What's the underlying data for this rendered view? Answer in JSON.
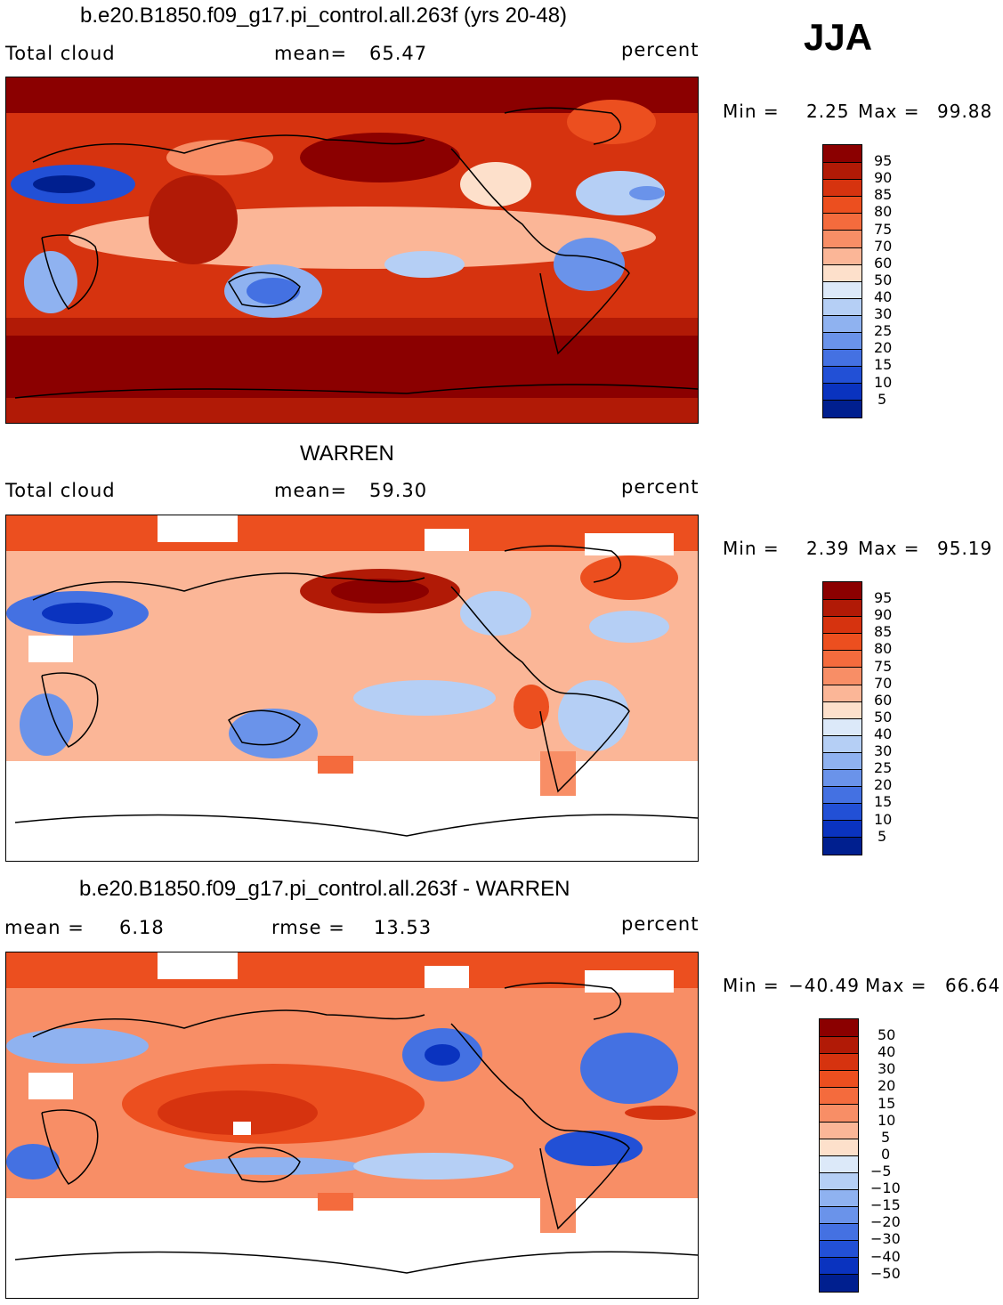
{
  "season": "JJA",
  "panels": [
    {
      "title": "b.e20.B1850.f09_g17.pi_control.all.263f (yrs 20-48)",
      "left_text": "Total cloud",
      "stat1_label": "mean=",
      "stat1_value": "65.47",
      "stat2_label": "",
      "stat2_value": "",
      "units": "percent",
      "min_label": "Min =",
      "min_value": "2.25",
      "max_label": "Max =",
      "max_value": "99.88",
      "levels": [
        "95",
        "90",
        "85",
        "80",
        "75",
        "70",
        "60",
        "50",
        "40",
        "30",
        "25",
        "20",
        "15",
        "10",
        "5"
      ]
    },
    {
      "title": "WARREN",
      "left_text": "Total cloud",
      "stat1_label": "mean=",
      "stat1_value": "59.30",
      "stat2_label": "",
      "stat2_value": "",
      "units": "percent",
      "min_label": "Min =",
      "min_value": "2.39",
      "max_label": "Max =",
      "max_value": "95.19",
      "levels": [
        "95",
        "90",
        "85",
        "80",
        "75",
        "70",
        "60",
        "50",
        "40",
        "30",
        "25",
        "20",
        "15",
        "10",
        "5"
      ]
    },
    {
      "title": "b.e20.B1850.f09_g17.pi_control.all.263f - WARREN",
      "left_text": "",
      "stat1_label": "mean =",
      "stat1_value": "6.18",
      "stat2_label": "rmse =",
      "stat2_value": "13.53",
      "units": "percent",
      "min_label": "Min =",
      "min_value": "−40.49",
      "max_label": "Max =",
      "max_value": "66.64",
      "levels": [
        "50",
        "40",
        "30",
        "20",
        "15",
        "10",
        "5",
        "0",
        "−5",
        "−10",
        "−15",
        "−20",
        "−30",
        "−40",
        "−50"
      ]
    }
  ],
  "colors": {
    "scale": [
      "#8b0000",
      "#b11a06",
      "#d6330f",
      "#ec4f1f",
      "#f46b3d",
      "#f88e66",
      "#fbb697",
      "#fde0cb",
      "#dce9f9",
      "#b5cff5",
      "#8fb2f0",
      "#6a93ea",
      "#4471e2",
      "#2250d6",
      "#0a33bf",
      "#001f8f"
    ],
    "land_outline": "#000000"
  }
}
